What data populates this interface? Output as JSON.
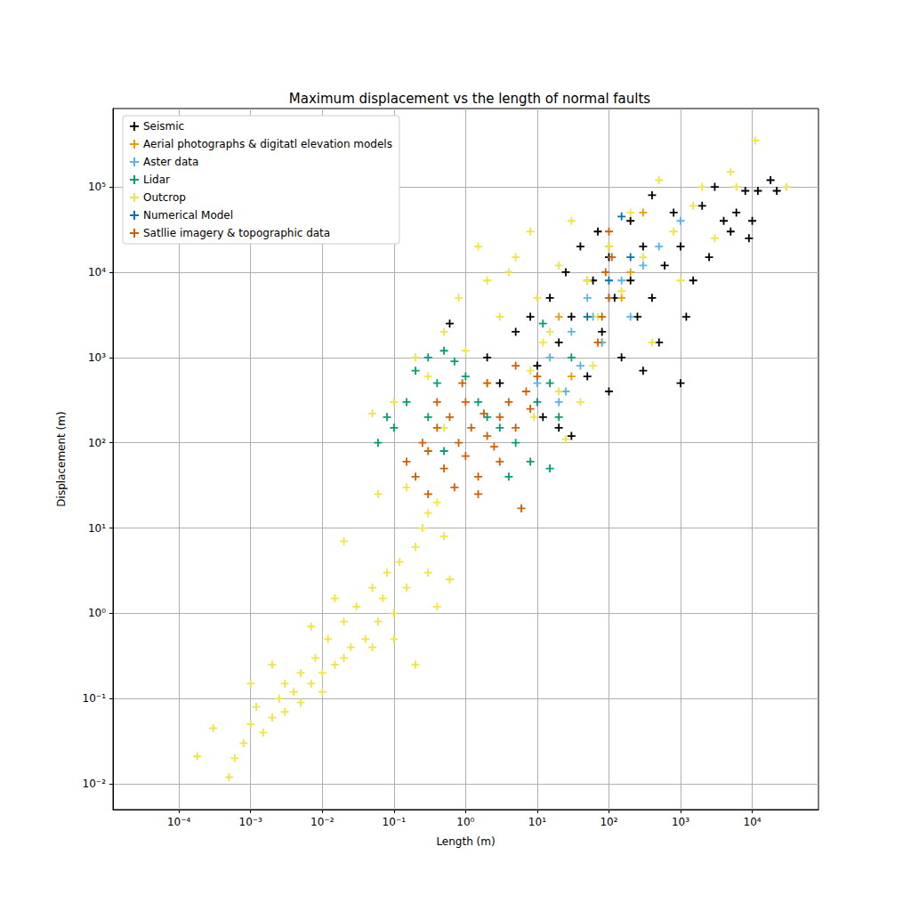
{
  "chart_data": {
    "type": "scatter",
    "title": "Maximum displacement vs the length of normal faults",
    "xlabel": "Length (m)",
    "ylabel": "Displacement (m)",
    "log": true,
    "grid": true,
    "legend": "upper left",
    "marker": "+",
    "xlim": [
      1.2e-05,
      84000
    ],
    "ylim": [
      0.005,
      830000
    ],
    "xticks": [
      {
        "value": 0.0001,
        "label": "10⁻⁴"
      },
      {
        "value": 0.001,
        "label": "10⁻³"
      },
      {
        "value": 0.01,
        "label": "10⁻²"
      },
      {
        "value": 0.1,
        "label": "10⁻¹"
      },
      {
        "value": 1,
        "label": "10⁰"
      },
      {
        "value": 10,
        "label": "10¹"
      },
      {
        "value": 100,
        "label": "10²"
      },
      {
        "value": 1000,
        "label": "10³"
      },
      {
        "value": 10000,
        "label": "10⁴"
      }
    ],
    "yticks": [
      {
        "value": 0.01,
        "label": "10⁻²"
      },
      {
        "value": 0.1,
        "label": "10⁻¹"
      },
      {
        "value": 1,
        "label": "10⁰"
      },
      {
        "value": 10,
        "label": "10¹"
      },
      {
        "value": 100,
        "label": "10²"
      },
      {
        "value": 1000,
        "label": "10³"
      },
      {
        "value": 10000,
        "label": "10⁴"
      },
      {
        "value": 100000,
        "label": "10⁵"
      }
    ],
    "series": [
      {
        "name": "Seismic",
        "color": "#000000",
        "values": [
          [
            0.6,
            2500
          ],
          [
            2,
            1000
          ],
          [
            3,
            500
          ],
          [
            5,
            2000
          ],
          [
            8,
            3000
          ],
          [
            10,
            800
          ],
          [
            12,
            200
          ],
          [
            15,
            5000
          ],
          [
            20,
            1500
          ],
          [
            20,
            150
          ],
          [
            25,
            10000
          ],
          [
            30,
            3000
          ],
          [
            40,
            20000
          ],
          [
            50,
            600
          ],
          [
            60,
            8000
          ],
          [
            70,
            30000
          ],
          [
            80,
            2000
          ],
          [
            100,
            15000
          ],
          [
            100,
            400
          ],
          [
            120,
            5000
          ],
          [
            150,
            1000
          ],
          [
            200,
            40000
          ],
          [
            200,
            8000
          ],
          [
            250,
            3000
          ],
          [
            300,
            20000
          ],
          [
            400,
            80000
          ],
          [
            400,
            5000
          ],
          [
            500,
            1500
          ],
          [
            600,
            12000
          ],
          [
            800,
            50000
          ],
          [
            1000,
            20000
          ],
          [
            1000,
            500
          ],
          [
            1200,
            3000
          ],
          [
            1500,
            8000
          ],
          [
            2000,
            60000
          ],
          [
            2500,
            15000
          ],
          [
            3000,
            100000
          ],
          [
            4000,
            40000
          ],
          [
            5000,
            30000
          ],
          [
            6000,
            50000
          ],
          [
            8000,
            90000
          ],
          [
            10000,
            40000
          ],
          [
            12000,
            90000
          ],
          [
            18000,
            120000
          ],
          [
            22000,
            90000
          ],
          [
            9000,
            25000
          ],
          [
            300,
            700
          ],
          [
            30,
            120
          ]
        ]
      },
      {
        "name": "Aerial photographs & digitatl elevation models",
        "color": "#e69f00",
        "values": [
          [
            20,
            3000
          ],
          [
            50,
            8000
          ],
          [
            100,
            20000
          ],
          [
            150,
            5000
          ],
          [
            300,
            50000
          ],
          [
            80,
            1500
          ],
          [
            200,
            10000
          ],
          [
            30,
            600
          ]
        ]
      },
      {
        "name": "Aster data",
        "color": "#56b4e9",
        "values": [
          [
            10,
            500
          ],
          [
            15,
            1000
          ],
          [
            20,
            300
          ],
          [
            30,
            2000
          ],
          [
            40,
            800
          ],
          [
            60,
            3000
          ],
          [
            80,
            1500
          ],
          [
            100,
            5000
          ],
          [
            150,
            8000
          ],
          [
            200,
            3000
          ],
          [
            300,
            12000
          ],
          [
            500,
            20000
          ],
          [
            1000,
            40000
          ],
          [
            25,
            400
          ],
          [
            50,
            5000
          ]
        ]
      },
      {
        "name": "Lidar",
        "color": "#009e73",
        "values": [
          [
            0.06,
            100
          ],
          [
            0.08,
            200
          ],
          [
            0.1,
            150
          ],
          [
            0.15,
            300
          ],
          [
            0.2,
            700
          ],
          [
            0.3,
            1000
          ],
          [
            0.4,
            500
          ],
          [
            0.5,
            1200
          ],
          [
            0.7,
            900
          ],
          [
            1,
            600
          ],
          [
            1.5,
            300
          ],
          [
            2,
            200
          ],
          [
            3,
            150
          ],
          [
            5,
            100
          ],
          [
            8,
            60
          ],
          [
            10,
            300
          ],
          [
            15,
            500
          ],
          [
            20,
            200
          ],
          [
            15,
            50
          ],
          [
            30,
            1000
          ],
          [
            12,
            2500
          ],
          [
            0.3,
            200
          ],
          [
            0.5,
            80
          ],
          [
            4,
            40
          ]
        ]
      },
      {
        "name": "Outcrop",
        "color": "#f0e442",
        "values": [
          [
            0.0003,
            0.045
          ],
          [
            0.00018,
            0.021
          ],
          [
            0.0005,
            0.012
          ],
          [
            0.0006,
            0.02
          ],
          [
            0.0008,
            0.03
          ],
          [
            0.001,
            0.05
          ],
          [
            0.0012,
            0.08
          ],
          [
            0.0015,
            0.04
          ],
          [
            0.002,
            0.06
          ],
          [
            0.0025,
            0.1
          ],
          [
            0.003,
            0.07
          ],
          [
            0.003,
            0.15
          ],
          [
            0.004,
            0.12
          ],
          [
            0.005,
            0.09
          ],
          [
            0.005,
            0.2
          ],
          [
            0.007,
            0.15
          ],
          [
            0.008,
            0.3
          ],
          [
            0.01,
            0.2
          ],
          [
            0.01,
            0.12
          ],
          [
            0.012,
            0.5
          ],
          [
            0.015,
            0.25
          ],
          [
            0.02,
            0.3
          ],
          [
            0.02,
            0.8
          ],
          [
            0.025,
            0.4
          ],
          [
            0.03,
            1.2
          ],
          [
            0.04,
            0.5
          ],
          [
            0.05,
            2
          ],
          [
            0.06,
            0.8
          ],
          [
            0.07,
            1.5
          ],
          [
            0.08,
            3
          ],
          [
            0.1,
            1
          ],
          [
            0.12,
            4
          ],
          [
            0.15,
            2
          ],
          [
            0.2,
            6
          ],
          [
            0.25,
            10
          ],
          [
            0.3,
            3
          ],
          [
            0.3,
            15
          ],
          [
            0.4,
            20
          ],
          [
            0.5,
            8
          ],
          [
            0.6,
            2.5
          ],
          [
            0.2,
            0.25
          ],
          [
            0.007,
            0.7
          ],
          [
            0.002,
            0.25
          ],
          [
            0.001,
            0.15
          ],
          [
            0.015,
            1.5
          ],
          [
            0.05,
            0.4
          ],
          [
            0.1,
            0.5
          ],
          [
            0.4,
            1.2
          ],
          [
            0.02,
            7
          ],
          [
            0.05,
            220
          ],
          [
            0.1,
            300
          ],
          [
            0.2,
            1000
          ],
          [
            0.3,
            600
          ],
          [
            0.5,
            2000
          ],
          [
            0.8,
            5000
          ],
          [
            1,
            1200
          ],
          [
            1.5,
            20000
          ],
          [
            2,
            8000
          ],
          [
            3,
            3000
          ],
          [
            5,
            15000
          ],
          [
            8,
            30000
          ],
          [
            10,
            5000
          ],
          [
            15,
            2000
          ],
          [
            20,
            12000
          ],
          [
            30,
            40000
          ],
          [
            50,
            8000
          ],
          [
            70,
            3000
          ],
          [
            100,
            20000
          ],
          [
            150,
            6000
          ],
          [
            200,
            50000
          ],
          [
            300,
            15000
          ],
          [
            500,
            120000
          ],
          [
            800,
            30000
          ],
          [
            1000,
            8000
          ],
          [
            1500,
            60000
          ],
          [
            2000,
            100000
          ],
          [
            3000,
            25000
          ],
          [
            5000,
            150000
          ],
          [
            6000,
            100000
          ],
          [
            11000,
            350000
          ],
          [
            30000,
            100000
          ],
          [
            400,
            1500
          ],
          [
            60,
            800
          ],
          [
            20,
            400
          ],
          [
            9,
            200
          ],
          [
            0.15,
            30
          ],
          [
            0.5,
            150
          ],
          [
            0.06,
            25
          ],
          [
            2,
            500
          ],
          [
            4,
            10000
          ],
          [
            40,
            300
          ],
          [
            12,
            1500
          ],
          [
            8,
            700
          ],
          [
            25,
            110
          ]
        ]
      },
      {
        "name": "Numerical Model",
        "color": "#0072b2",
        "values": [
          [
            150,
            45000
          ],
          [
            100,
            8000
          ],
          [
            50,
            3000
          ],
          [
            200,
            15000
          ]
        ]
      },
      {
        "name": "Satllie imagery & topographic data",
        "color": "#d55e00",
        "values": [
          [
            0.15,
            60
          ],
          [
            0.2,
            40
          ],
          [
            0.25,
            100
          ],
          [
            0.3,
            80
          ],
          [
            0.4,
            150
          ],
          [
            0.5,
            50
          ],
          [
            0.6,
            200
          ],
          [
            0.8,
            100
          ],
          [
            1,
            70
          ],
          [
            1,
            300
          ],
          [
            1.2,
            150
          ],
          [
            1.5,
            40
          ],
          [
            2,
            120
          ],
          [
            2,
            500
          ],
          [
            3,
            200
          ],
          [
            3,
            60
          ],
          [
            4,
            300
          ],
          [
            5,
            150
          ],
          [
            5,
            800
          ],
          [
            6,
            17
          ],
          [
            7,
            400
          ],
          [
            8,
            250
          ],
          [
            10,
            600
          ],
          [
            0.7,
            30
          ],
          [
            1.5,
            25
          ],
          [
            2.5,
            90
          ],
          [
            0.4,
            300
          ],
          [
            0.9,
            500
          ],
          [
            80,
            3000
          ],
          [
            90,
            10000
          ],
          [
            100,
            30000
          ],
          [
            100,
            5000
          ],
          [
            70,
            1500
          ],
          [
            110,
            15000
          ],
          [
            0.3,
            25
          ],
          [
            1.8,
            220
          ]
        ]
      }
    ]
  }
}
